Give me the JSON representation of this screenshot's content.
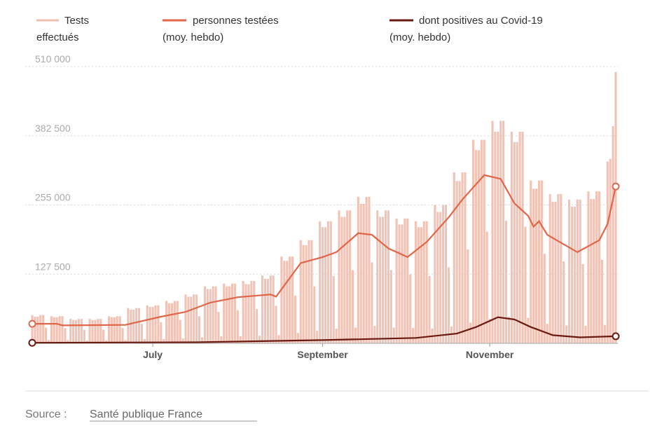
{
  "chart_data": {
    "type": "bar+line",
    "start_date": "2020-05-18",
    "legend": [
      {
        "line1": "Tests",
        "line2": "effectués",
        "color": "#f0bfb2"
      },
      {
        "line1": "personnes testées",
        "line2": "(moy. hebdo)",
        "color": "#e0664a"
      },
      {
        "line1": "dont positives au Covid-19",
        "line2": "(moy. hebdo)",
        "color": "#6b1a10"
      }
    ],
    "legend_placement": "top",
    "y_ticks": [
      {
        "value": 127500,
        "label": "127 500"
      },
      {
        "value": 255000,
        "label": "255 000"
      },
      {
        "value": 382500,
        "label": "382 500"
      },
      {
        "value": 510000,
        "label": "510 000"
      }
    ],
    "ylim": [
      0,
      510000
    ],
    "x_ticks": [
      {
        "day": 44,
        "label": "July"
      },
      {
        "day": 106,
        "label": "September"
      },
      {
        "day": 167,
        "label": "November"
      }
    ],
    "xlim_days": [
      0,
      213
    ],
    "grid": "horizontal dotted",
    "tests_daily_thousands": [
      52,
      49,
      49,
      52,
      52,
      29,
      6,
      50,
      48,
      48,
      50,
      50,
      28,
      6,
      45,
      43,
      43,
      45,
      45,
      25,
      5,
      45,
      43,
      43,
      45,
      45,
      25,
      5,
      50,
      48,
      48,
      50,
      50,
      28,
      6,
      65,
      62,
      62,
      65,
      65,
      36,
      8,
      70,
      67,
      67,
      70,
      70,
      39,
      8,
      78,
      74,
      74,
      78,
      78,
      43,
      9,
      90,
      86,
      86,
      90,
      90,
      50,
      11,
      105,
      100,
      100,
      105,
      105,
      58,
      13,
      110,
      105,
      105,
      110,
      110,
      61,
      13,
      115,
      109,
      109,
      115,
      115,
      63,
      14,
      125,
      119,
      119,
      125,
      125,
      69,
      15,
      160,
      152,
      152,
      160,
      160,
      88,
      19,
      190,
      181,
      181,
      190,
      190,
      105,
      23,
      225,
      214,
      214,
      225,
      225,
      124,
      27,
      245,
      233,
      233,
      245,
      245,
      135,
      29,
      270,
      257,
      257,
      270,
      270,
      149,
      32,
      245,
      233,
      233,
      245,
      245,
      135,
      29,
      230,
      219,
      219,
      230,
      230,
      127,
      28,
      225,
      214,
      214,
      225,
      225,
      124,
      27,
      255,
      242,
      242,
      255,
      255,
      140,
      31,
      315,
      299,
      299,
      315,
      315,
      173,
      38,
      375,
      356,
      356,
      375,
      375,
      206,
      45,
      410,
      390,
      390,
      410,
      410,
      226,
      49,
      390,
      371,
      371,
      390,
      390,
      215,
      47,
      300,
      285,
      285,
      300,
      300,
      165,
      36,
      275,
      261,
      261,
      275,
      275,
      151,
      33,
      265,
      252,
      252,
      265,
      265,
      146,
      32,
      280,
      266,
      266,
      280,
      280,
      154,
      34,
      335,
      340,
      400,
      500
    ],
    "persons_weekly_avg": [
      [
        0,
        36000
      ],
      [
        9,
        36000
      ],
      [
        11,
        33000
      ],
      [
        34,
        34000
      ],
      [
        47,
        49000
      ],
      [
        56,
        58000
      ],
      [
        65,
        75000
      ],
      [
        75,
        85000
      ],
      [
        87,
        90000
      ],
      [
        89,
        86000
      ],
      [
        98,
        148000
      ],
      [
        106,
        159000
      ],
      [
        111,
        168000
      ],
      [
        119,
        203000
      ],
      [
        124,
        200000
      ],
      [
        130,
        175000
      ],
      [
        137,
        159000
      ],
      [
        144,
        187000
      ],
      [
        152,
        232000
      ],
      [
        157,
        265000
      ],
      [
        165,
        310000
      ],
      [
        171,
        303000
      ],
      [
        176,
        258000
      ],
      [
        181,
        235000
      ],
      [
        183,
        215000
      ],
      [
        185,
        225000
      ],
      [
        188,
        200000
      ],
      [
        199,
        168000
      ],
      [
        207,
        190000
      ],
      [
        210,
        220000
      ],
      [
        213,
        289000
      ]
    ],
    "positives_weekly_avg": [
      [
        0,
        1000
      ],
      [
        60,
        2000
      ],
      [
        106,
        6000
      ],
      [
        140,
        10000
      ],
      [
        155,
        18000
      ],
      [
        162,
        30000
      ],
      [
        170,
        48000
      ],
      [
        176,
        44000
      ],
      [
        182,
        30000
      ],
      [
        190,
        15000
      ],
      [
        200,
        11000
      ],
      [
        213,
        13000
      ]
    ]
  },
  "footer": {
    "source_label": "Source : ",
    "source_link": "Santé publique France"
  }
}
